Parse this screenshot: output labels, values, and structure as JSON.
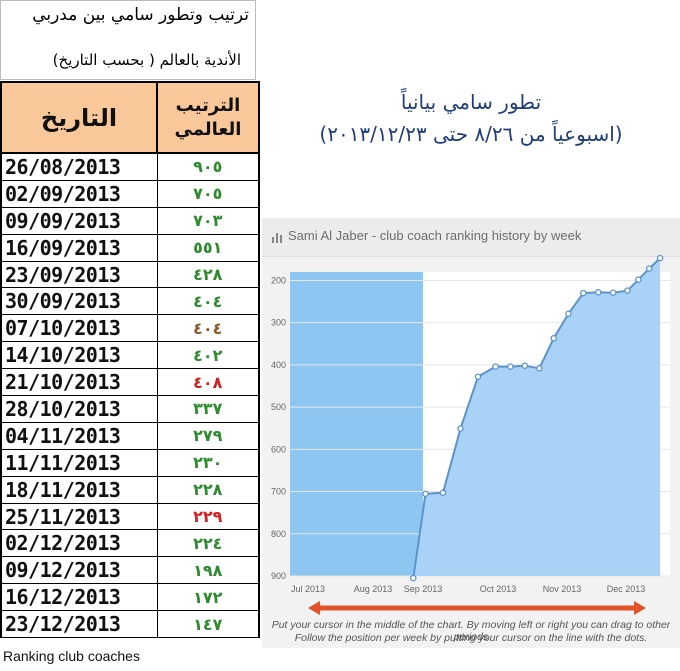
{
  "title": {
    "line1": "ترتيب وتطور سامي بين مدربي",
    "line2": "الأندية بالعالم ( بحسب التاريخ)"
  },
  "table": {
    "header_date": "التاريخ",
    "header_rank_line1": "الترتيب",
    "header_rank_line2": "العالمي",
    "rows": [
      {
        "date": "26/08/2013",
        "rank": "٩٠٥",
        "color": "#2e8b2e"
      },
      {
        "date": "02/09/2013",
        "rank": "٧٠٥",
        "color": "#2e8b2e"
      },
      {
        "date": "09/09/2013",
        "rank": "٧٠٣",
        "color": "#2e8b2e"
      },
      {
        "date": "16/09/2013",
        "rank": "٥٥١",
        "color": "#2e8b2e"
      },
      {
        "date": "23/09/2013",
        "rank": "٤٢٨",
        "color": "#2e8b2e"
      },
      {
        "date": "30/09/2013",
        "rank": "٤٠٤",
        "color": "#2e8b2e"
      },
      {
        "date": "07/10/2013",
        "rank": "٤٠٤",
        "color": "#8b5a2b"
      },
      {
        "date": "14/10/2013",
        "rank": "٤٠٢",
        "color": "#2e8b2e"
      },
      {
        "date": "21/10/2013",
        "rank": "٤٠٨",
        "color": "#d42020"
      },
      {
        "date": "28/10/2013",
        "rank": "٣٣٧",
        "color": "#2e8b2e"
      },
      {
        "date": "04/11/2013",
        "rank": "٢٧٩",
        "color": "#2e8b2e"
      },
      {
        "date": "11/11/2013",
        "rank": "٢٣٠",
        "color": "#2e8b2e"
      },
      {
        "date": "18/11/2013",
        "rank": "٢٢٨",
        "color": "#2e8b2e"
      },
      {
        "date": "25/11/2013",
        "rank": "٢٢٩",
        "color": "#d42020"
      },
      {
        "date": "02/12/2013",
        "rank": "٢٢٤",
        "color": "#2e8b2e"
      },
      {
        "date": "09/12/2013",
        "rank": "١٩٨",
        "color": "#2e8b2e"
      },
      {
        "date": "16/12/2013",
        "rank": "١٧٢",
        "color": "#2e8b2e"
      },
      {
        "date": "23/12/2013",
        "rank": "١٤٧",
        "color": "#2e8b2e"
      }
    ]
  },
  "footer": "Ranking club coaches",
  "heading": {
    "line1": "تطور سامي بيانياً",
    "line2": "(اسبوعياً من ٨/٢٦ حتى ٢٠١٣/١٢/٢٣)"
  },
  "chart_data": {
    "type": "area",
    "title": "Sami Al Jaber - club coach ranking history by week",
    "x_tick_labels": [
      "Jul 2013",
      "Aug 2013",
      "Sep 2013",
      "Oct 2013",
      "Nov 2013",
      "Dec 2013"
    ],
    "y_tick_labels": [
      "200",
      "300",
      "400",
      "500",
      "600",
      "700",
      "800",
      "900"
    ],
    "ylim": [
      900,
      180
    ],
    "y_inverted": true,
    "highlighted_range": [
      "Jul 2013",
      "Aug 2013"
    ],
    "x": [
      "2013-08-26",
      "2013-09-02",
      "2013-09-09",
      "2013-09-16",
      "2013-09-23",
      "2013-09-30",
      "2013-10-07",
      "2013-10-14",
      "2013-10-21",
      "2013-10-28",
      "2013-11-04",
      "2013-11-11",
      "2013-11-18",
      "2013-11-25",
      "2013-12-02",
      "2013-12-09",
      "2013-12-16",
      "2013-12-23"
    ],
    "values": [
      905,
      705,
      703,
      551,
      428,
      404,
      404,
      402,
      408,
      337,
      279,
      230,
      228,
      229,
      224,
      198,
      172,
      147
    ],
    "note_line1": "Put your cursor in the middle of the chart. By moving left or right you can drag to other periods",
    "note_line2": "Follow the position per week by putting your cursor on the line with the dots.",
    "colors": {
      "area": "#a9d2f7",
      "line": "#5d93c9",
      "highlight": "#8ec6f2",
      "arrow": "#e0522a"
    }
  }
}
